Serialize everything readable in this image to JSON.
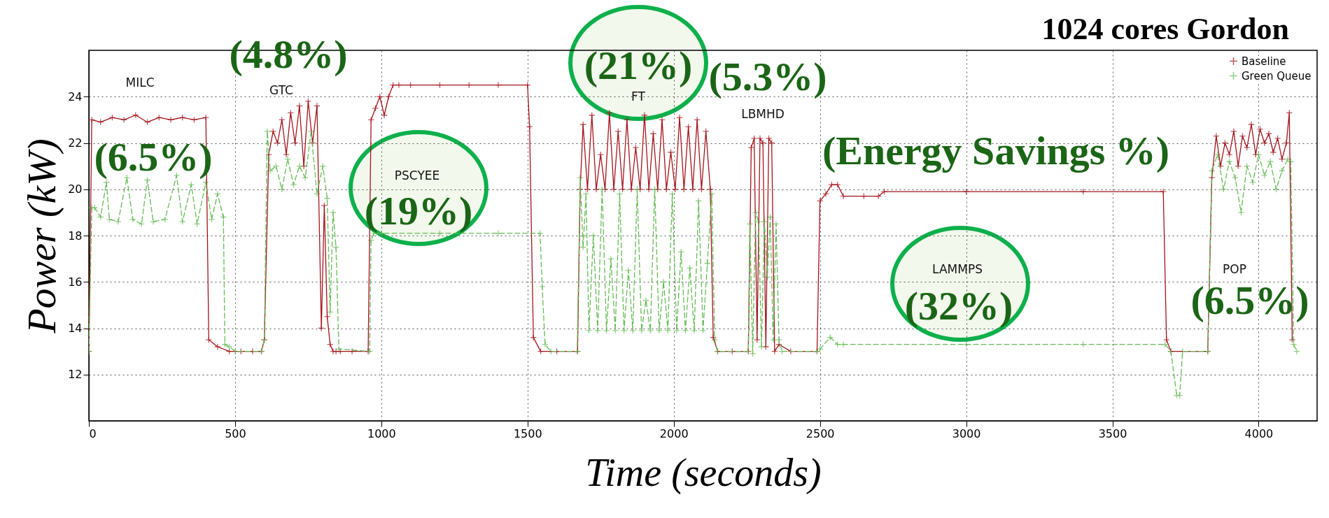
{
  "chart_data": {
    "type": "line",
    "title": "1024 cores Gordon",
    "xlabel": "Time (seconds)",
    "ylabel": "Power (kW)",
    "xlim": [
      0,
      4200
    ],
    "xticks": [
      0,
      500,
      1000,
      1500,
      2000,
      2500,
      3000,
      3500,
      4000
    ],
    "ylim": [
      10,
      26
    ],
    "yticks": [
      12,
      14,
      16,
      18,
      20,
      22,
      24
    ],
    "grid": true,
    "legend": "top right",
    "series": [
      {
        "name": "Baseline",
        "color": "#a3141c",
        "marker": "cross",
        "line_style": "solid",
        "x": [
          0,
          10,
          40,
          80,
          120,
          160,
          200,
          240,
          280,
          320,
          360,
          400,
          410,
          440,
          480,
          520,
          560,
          590,
          600,
          615,
          630,
          645,
          660,
          675,
          690,
          705,
          720,
          735,
          750,
          765,
          780,
          795,
          805,
          815,
          825,
          835,
          845,
          860,
          900,
          955,
          965,
          980,
          995,
          1010,
          1025,
          1040,
          1060,
          1100,
          1200,
          1300,
          1400,
          1500,
          1507,
          1520,
          1545,
          1600,
          1671,
          1680,
          1690,
          1705,
          1720,
          1735,
          1750,
          1765,
          1780,
          1795,
          1810,
          1825,
          1840,
          1855,
          1870,
          1885,
          1900,
          1915,
          1930,
          1945,
          1960,
          1975,
          1990,
          2005,
          2020,
          2035,
          2050,
          2065,
          2080,
          2095,
          2110,
          2125,
          2135,
          2150,
          2200,
          2255,
          2265,
          2275,
          2285,
          2295,
          2305,
          2315,
          2325,
          2335,
          2345,
          2360,
          2400,
          2490,
          2500,
          2520,
          2540,
          2560,
          2580,
          2650,
          2700,
          2720,
          3000,
          3400,
          3674,
          3685,
          3700,
          3826,
          3840,
          3855,
          3870,
          3885,
          3900,
          3915,
          3930,
          3945,
          3960,
          3975,
          3990,
          4005,
          4020,
          4035,
          4050,
          4065,
          4080,
          4095,
          4105,
          4115
        ],
        "values": [
          13.0,
          23.0,
          22.9,
          23.1,
          23.0,
          23.2,
          22.9,
          23.1,
          23.0,
          23.1,
          23.0,
          23.1,
          13.5,
          13.2,
          13.0,
          13.0,
          13.0,
          13.0,
          13.5,
          21.5,
          22.5,
          22.0,
          23.0,
          21.5,
          23.3,
          22.0,
          23.6,
          21.0,
          23.8,
          22.0,
          23.6,
          14.0,
          19.3,
          14.5,
          13.3,
          13.0,
          13.0,
          13.0,
          13.0,
          13.0,
          23.0,
          23.5,
          24.0,
          23.2,
          24.0,
          24.5,
          24.5,
          24.5,
          24.5,
          24.5,
          24.5,
          24.5,
          22.7,
          13.6,
          13.0,
          13.0,
          13.0,
          20.0,
          22.8,
          20.0,
          23.2,
          20.0,
          21.5,
          20.0,
          23.3,
          20.0,
          22.5,
          20.0,
          23.0,
          20.0,
          21.8,
          20.0,
          23.2,
          20.0,
          22.4,
          20.0,
          23.0,
          20.0,
          21.6,
          20.0,
          23.1,
          20.0,
          22.7,
          20.0,
          23.0,
          20.0,
          22.5,
          20.0,
          13.6,
          13.0,
          13.0,
          13.0,
          21.8,
          22.2,
          13.5,
          22.2,
          22.0,
          13.2,
          22.2,
          22.0,
          13.0,
          13.3,
          13.0,
          13.0,
          19.5,
          19.8,
          20.2,
          20.2,
          19.7,
          19.7,
          19.7,
          19.9,
          19.9,
          19.9,
          19.9,
          13.5,
          13.0,
          13.0,
          20.5,
          22.3,
          21.0,
          22.0,
          21.5,
          22.5,
          21.0,
          22.3,
          21.8,
          22.8,
          21.5,
          22.6,
          22.0,
          22.4,
          21.6,
          22.2,
          21.3,
          22.0,
          23.3,
          13.5
        ]
      },
      {
        "name": "Green Queue",
        "color": "#66bb55",
        "marker": "cross",
        "line_style": "dashed",
        "x": [
          0,
          10,
          20,
          40,
          60,
          70,
          100,
          130,
          150,
          180,
          200,
          220,
          260,
          300,
          320,
          350,
          370,
          400,
          420,
          440,
          460,
          465,
          480,
          500,
          590,
          600,
          610,
          620,
          640,
          660,
          680,
          700,
          720,
          740,
          760,
          780,
          800,
          815,
          825,
          835,
          845,
          855,
          960,
          965,
          975,
          1000,
          1200,
          1400,
          1543,
          1550,
          1560,
          1580,
          1670,
          1680,
          1690,
          1700,
          1710,
          1725,
          1740,
          1755,
          1770,
          1785,
          1800,
          1815,
          1830,
          1845,
          1860,
          1875,
          1890,
          1905,
          1920,
          1935,
          1950,
          1965,
          1980,
          1995,
          2010,
          2025,
          2040,
          2055,
          2070,
          2085,
          2100,
          2115,
          2130,
          2140,
          2150,
          2255,
          2260,
          2270,
          2280,
          2290,
          2300,
          2310,
          2320,
          2330,
          2340,
          2350,
          2360,
          2370,
          2490,
          2500,
          2535,
          2560,
          2580,
          3000,
          3400,
          3680,
          3700,
          3720,
          3730,
          3740,
          3826,
          3840,
          3860,
          3880,
          3900,
          3920,
          3940,
          3960,
          3980,
          4000,
          4020,
          4040,
          4060,
          4080,
          4100,
          4110,
          4120,
          4130
        ],
        "values": [
          13.0,
          19.2,
          19.2,
          18.8,
          20.3,
          18.7,
          18.6,
          20.5,
          18.7,
          18.5,
          20.4,
          18.6,
          18.7,
          20.6,
          18.6,
          20.2,
          18.5,
          20.3,
          18.7,
          19.8,
          18.8,
          13.3,
          13.2,
          13.0,
          13.0,
          13.5,
          22.5,
          20.8,
          21.0,
          20.0,
          21.3,
          20.2,
          21.0,
          20.5,
          22.5,
          19.8,
          21.0,
          19.6,
          14.7,
          19.0,
          17.5,
          13.1,
          13.0,
          17.8,
          18.1,
          18.1,
          18.1,
          18.1,
          18.1,
          15.8,
          13.3,
          13.0,
          13.0,
          20.5,
          17.5,
          19.8,
          13.9,
          18.0,
          13.9,
          20.0,
          13.9,
          17.0,
          13.9,
          19.8,
          13.9,
          16.5,
          13.9,
          20.0,
          13.9,
          15.2,
          13.9,
          20.0,
          13.9,
          16.0,
          13.9,
          19.8,
          13.9,
          17.3,
          13.9,
          16.6,
          13.9,
          19.5,
          13.9,
          16.8,
          19.8,
          13.5,
          13.0,
          13.0,
          18.5,
          12.9,
          19.0,
          18.6,
          13.2,
          18.6,
          16.2,
          18.8,
          13.5,
          18.5,
          13.5,
          13.0,
          13.0,
          13.1,
          13.6,
          13.3,
          13.3,
          13.3,
          13.3,
          13.3,
          13.0,
          11.1,
          11.1,
          13.0,
          13.0,
          20.8,
          21.5,
          20.0,
          21.2,
          20.5,
          19.0,
          21.0,
          20.3,
          21.5,
          20.6,
          21.2,
          20.0,
          20.8,
          21.3,
          21.2,
          13.3,
          13.0
        ]
      }
    ],
    "annotations": [
      "MILC",
      "GTC",
      "PSCYEE",
      "FT",
      "LBMHD",
      "LAMMPS",
      "POP",
      "(6.5%)",
      "(4.8%)",
      "(19%)",
      "(21%)",
      "(5.3%)",
      "(32%)",
      "(6.5%)",
      "(Energy Savings %)"
    ]
  }
}
